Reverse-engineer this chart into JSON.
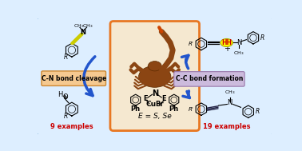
{
  "bg_color": "#ddeeff",
  "outer_border_color": "#5599cc",
  "center_box_color": "#e87722",
  "cn_label_bg": "#f5c990",
  "cc_label_bg": "#ccbbdd",
  "cn_label_text": "C-N bond cleavage",
  "cc_label_text": "C-C bond formation",
  "examples_left": "9 examples",
  "examples_right": "19 examples",
  "examples_color": "#cc0000",
  "arrow_color": "#2255cc",
  "e_label": "E = S, Se",
  "hh_color": "#ffff00",
  "hh_text_color": "#cc0000",
  "hh_text": "HH",
  "yellow_bond_color": "#cccc00",
  "scorpion_body": "#8B4513",
  "scorpion_dark": "#5c2a00"
}
